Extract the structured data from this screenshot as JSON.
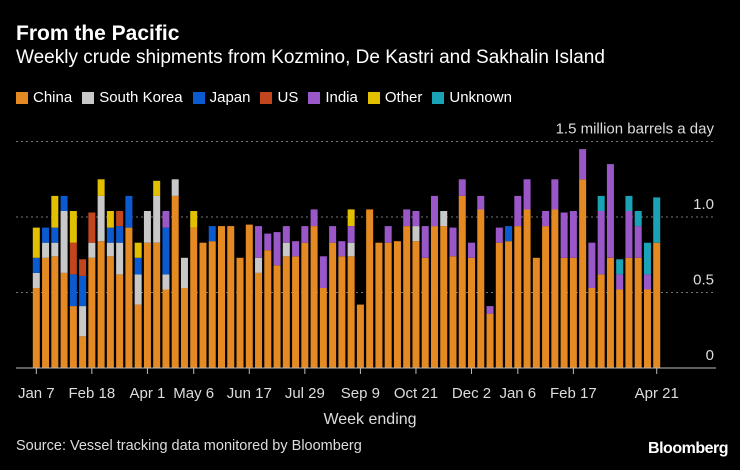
{
  "title": "From the Pacific",
  "subtitle": "Weekly crude shipments from Kozmino, De Kastri and Sakhalin Island",
  "source": "Source: Vessel tracking data monitored by Bloomberg",
  "brand": "Bloomberg",
  "chart_data": {
    "type": "bar",
    "stacked": true,
    "title": "From the Pacific",
    "xlabel": "Week ending",
    "ylabel": "1.5 million barrels a day",
    "ylim": [
      0,
      1.5
    ],
    "yticks": [
      0,
      0.5,
      1.0,
      1.5
    ],
    "ytick_labels": [
      "0",
      "0.5",
      "1.0",
      "1.5 million barrels a day"
    ],
    "grid": true,
    "legend": "top-left",
    "xtick_labels": [
      {
        "index": 0,
        "label": "Jan 7"
      },
      {
        "index": 6,
        "label": "Feb 18"
      },
      {
        "index": 12,
        "label": "Apr 1"
      },
      {
        "index": 17,
        "label": "May 6"
      },
      {
        "index": 23,
        "label": "Jun 17"
      },
      {
        "index": 29,
        "label": "Jul 29"
      },
      {
        "index": 35,
        "label": "Sep 9"
      },
      {
        "index": 41,
        "label": "Oct 21"
      },
      {
        "index": 47,
        "label": "Dec 2"
      },
      {
        "index": 52,
        "label": "Jan 6"
      },
      {
        "index": 58,
        "label": "Feb 17"
      },
      {
        "index": 67,
        "label": "Apr 21"
      }
    ],
    "series": [
      {
        "name": "China",
        "color": "#e58a22",
        "values": [
          0.53,
          0.73,
          0.74,
          0.63,
          0.41,
          0.21,
          0.73,
          0.84,
          0.74,
          0.62,
          0.93,
          0.42,
          0.83,
          0.83,
          0.52,
          1.14,
          0.53,
          0.93,
          0.83,
          0.84,
          0.94,
          0.94,
          0.73,
          0.95,
          0.63,
          0.78,
          0.68,
          0.74,
          0.74,
          0.83,
          0.94,
          0.53,
          0.83,
          0.74,
          0.74,
          0.42,
          1.05,
          0.83,
          0.83,
          0.84,
          0.94,
          0.84,
          0.73,
          0.94,
          0.94,
          0.74,
          1.14,
          0.73,
          1.05,
          0.36,
          0.83,
          0.84,
          0.94,
          1.05,
          0.73,
          0.94,
          1.05,
          0.73,
          0.73,
          1.25,
          0.53,
          0.62,
          0.73,
          0.52,
          0.73,
          0.73,
          0.52,
          0.83
        ]
      },
      {
        "name": "South Korea",
        "color": "#c8c8c8",
        "values": [
          0.1,
          0.1,
          0.09,
          0.41,
          0,
          0.2,
          0.1,
          0.3,
          0.09,
          0.21,
          0,
          0.2,
          0.21,
          0.31,
          0.1,
          0.11,
          0.2,
          0,
          0,
          0,
          0,
          0,
          0,
          0,
          0.1,
          0,
          0,
          0.09,
          0,
          0,
          0,
          0,
          0,
          0,
          0.09,
          0,
          0,
          0,
          0,
          0,
          0,
          0.1,
          0,
          0,
          0.1,
          0,
          0,
          0,
          0,
          0,
          0,
          0,
          0,
          0,
          0,
          0,
          0,
          0,
          0,
          0,
          0,
          0,
          0,
          0,
          0,
          0,
          0,
          0
        ]
      },
      {
        "name": "Japan",
        "color": "#0c5ad0",
        "values": [
          0.1,
          0.1,
          0.1,
          0.1,
          0.21,
          0.2,
          0,
          0,
          0.1,
          0.11,
          0.21,
          0.11,
          0,
          0,
          0.31,
          0,
          0,
          0,
          0,
          0.1,
          0,
          0,
          0,
          0,
          0,
          0,
          0,
          0,
          0,
          0,
          0,
          0,
          0,
          0,
          0,
          0,
          0,
          0,
          0,
          0,
          0,
          0,
          0,
          0,
          0,
          0,
          0,
          0,
          0,
          0,
          0,
          0.1,
          0,
          0,
          0,
          0,
          0,
          0,
          0,
          0,
          0,
          0,
          0,
          0,
          0,
          0,
          0,
          0
        ]
      },
      {
        "name": "US",
        "color": "#c2461d",
        "values": [
          0,
          0,
          0,
          0,
          0.21,
          0.11,
          0.2,
          0,
          0,
          0.1,
          0,
          0,
          0,
          0,
          0,
          0,
          0,
          0,
          0,
          0,
          0,
          0,
          0,
          0,
          0,
          0,
          0,
          0,
          0,
          0,
          0,
          0,
          0,
          0,
          0,
          0,
          0,
          0,
          0,
          0,
          0,
          0,
          0,
          0,
          0,
          0,
          0,
          0,
          0,
          0,
          0,
          0,
          0,
          0,
          0,
          0,
          0,
          0,
          0,
          0,
          0,
          0,
          0,
          0,
          0,
          0,
          0,
          0
        ]
      },
      {
        "name": "India",
        "color": "#9a57c8",
        "values": [
          0,
          0,
          0,
          0,
          0,
          0,
          0,
          0,
          0,
          0,
          0,
          0,
          0,
          0,
          0.11,
          0,
          0,
          0,
          0,
          0,
          0,
          0,
          0,
          0,
          0.21,
          0.11,
          0.22,
          0.11,
          0.1,
          0.11,
          0.11,
          0.21,
          0.11,
          0.1,
          0.11,
          0,
          0,
          0,
          0.11,
          0,
          0.11,
          0.1,
          0.21,
          0.2,
          0,
          0.19,
          0.11,
          0.1,
          0.09,
          0.05,
          0.1,
          0,
          0.2,
          0.2,
          0,
          0.1,
          0.2,
          0.3,
          0.31,
          0.2,
          0.3,
          0.42,
          0.62,
          0.1,
          0.31,
          0.21,
          0.1,
          0
        ]
      },
      {
        "name": "Other",
        "color": "#e2c000",
        "values": [
          0.2,
          0,
          0.21,
          0,
          0.21,
          0,
          0,
          0.11,
          0.11,
          0,
          0,
          0.1,
          0,
          0.1,
          0,
          0,
          0,
          0.11,
          0,
          0,
          0,
          0,
          0,
          0,
          0,
          0,
          0,
          0,
          0,
          0,
          0,
          0,
          0,
          0,
          0.11,
          0,
          0,
          0,
          0,
          0,
          0,
          0,
          0,
          0,
          0,
          0,
          0,
          0,
          0,
          0,
          0,
          0,
          0,
          0,
          0,
          0,
          0,
          0,
          0,
          0,
          0,
          0,
          0,
          0,
          0,
          0,
          0,
          0
        ]
      },
      {
        "name": "Unknown",
        "color": "#1aa2b6",
        "values": [
          0,
          0,
          0,
          0,
          0,
          0,
          0,
          0,
          0,
          0,
          0,
          0,
          0,
          0,
          0,
          0,
          0,
          0,
          0,
          0,
          0,
          0,
          0,
          0,
          0,
          0,
          0,
          0,
          0,
          0,
          0,
          0,
          0,
          0,
          0,
          0,
          0,
          0,
          0,
          0,
          0,
          0,
          0,
          0,
          0,
          0,
          0,
          0,
          0,
          0,
          0,
          0,
          0,
          0,
          0,
          0,
          0,
          0,
          0,
          0,
          0,
          0.1,
          0,
          0.1,
          0.1,
          0.1,
          0.21,
          0.3
        ]
      }
    ]
  }
}
